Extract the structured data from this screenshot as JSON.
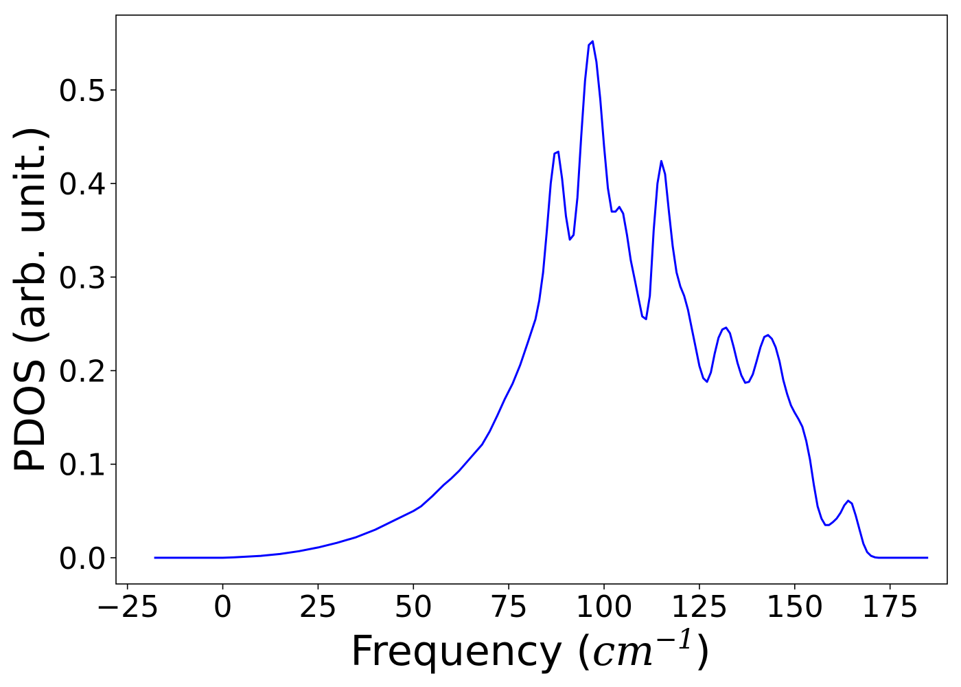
{
  "chart_data": {
    "type": "line",
    "title": "",
    "xlabel_text": "Frequency (",
    "xlabel_math": "cm",
    "xlabel_sup": "−1",
    "xlabel_close": ")",
    "ylabel": "PDOS (arb. unit.)",
    "xlim": [
      -28,
      190
    ],
    "ylim": [
      -0.028,
      0.58
    ],
    "xticks": [
      -25,
      0,
      25,
      50,
      75,
      100,
      125,
      150,
      175
    ],
    "xtick_labels": [
      "−25",
      "0",
      "25",
      "50",
      "75",
      "100",
      "125",
      "150",
      "175"
    ],
    "yticks": [
      0.0,
      0.1,
      0.2,
      0.3,
      0.4,
      0.5
    ],
    "ytick_labels": [
      "0.0",
      "0.1",
      "0.2",
      "0.3",
      "0.4",
      "0.5"
    ],
    "grid": false,
    "series": [
      {
        "color": "#0000ff",
        "x": [
          -18,
          -10,
          0,
          3,
          10,
          15,
          20,
          25,
          30,
          35,
          40,
          45,
          50,
          52,
          55,
          58,
          60,
          62,
          65,
          68,
          70,
          72,
          74,
          76,
          78,
          80,
          82,
          83,
          84,
          85,
          86,
          87,
          88,
          89,
          90,
          91,
          92,
          93,
          94,
          95,
          96,
          97,
          98,
          99,
          100,
          101,
          102,
          103,
          104,
          105,
          106,
          107,
          108,
          109,
          110,
          111,
          112,
          113,
          114,
          115,
          116,
          117,
          118,
          119,
          120,
          121,
          122,
          123,
          124,
          125,
          126,
          127,
          128,
          129,
          130,
          131,
          132,
          133,
          134,
          135,
          136,
          137,
          138,
          139,
          140,
          141,
          142,
          143,
          144,
          145,
          146,
          147,
          148,
          149,
          150,
          151,
          152,
          153,
          154,
          155,
          156,
          157,
          158,
          159,
          160,
          161,
          162,
          163,
          164,
          165,
          166,
          167,
          168,
          169,
          170,
          171,
          172,
          173,
          175,
          180,
          185
        ],
        "y": [
          0.0,
          0.0,
          0.0,
          0.0005,
          0.002,
          0.004,
          0.007,
          0.011,
          0.016,
          0.022,
          0.03,
          0.04,
          0.05,
          0.055,
          0.066,
          0.078,
          0.085,
          0.093,
          0.107,
          0.121,
          0.135,
          0.152,
          0.17,
          0.186,
          0.206,
          0.23,
          0.255,
          0.275,
          0.305,
          0.35,
          0.4,
          0.432,
          0.434,
          0.405,
          0.365,
          0.34,
          0.345,
          0.385,
          0.45,
          0.51,
          0.548,
          0.552,
          0.53,
          0.49,
          0.44,
          0.395,
          0.37,
          0.37,
          0.375,
          0.368,
          0.345,
          0.318,
          0.298,
          0.278,
          0.258,
          0.255,
          0.28,
          0.35,
          0.4,
          0.424,
          0.41,
          0.37,
          0.333,
          0.305,
          0.29,
          0.28,
          0.265,
          0.245,
          0.225,
          0.205,
          0.192,
          0.188,
          0.198,
          0.218,
          0.235,
          0.244,
          0.246,
          0.24,
          0.225,
          0.208,
          0.195,
          0.187,
          0.188,
          0.196,
          0.21,
          0.225,
          0.236,
          0.238,
          0.234,
          0.225,
          0.21,
          0.19,
          0.175,
          0.163,
          0.155,
          0.148,
          0.14,
          0.125,
          0.105,
          0.078,
          0.055,
          0.042,
          0.035,
          0.035,
          0.038,
          0.042,
          0.048,
          0.056,
          0.061,
          0.058,
          0.045,
          0.03,
          0.015,
          0.006,
          0.002,
          0.0005,
          0.0,
          0.0,
          0.0,
          0.0,
          0.0
        ]
      }
    ]
  }
}
